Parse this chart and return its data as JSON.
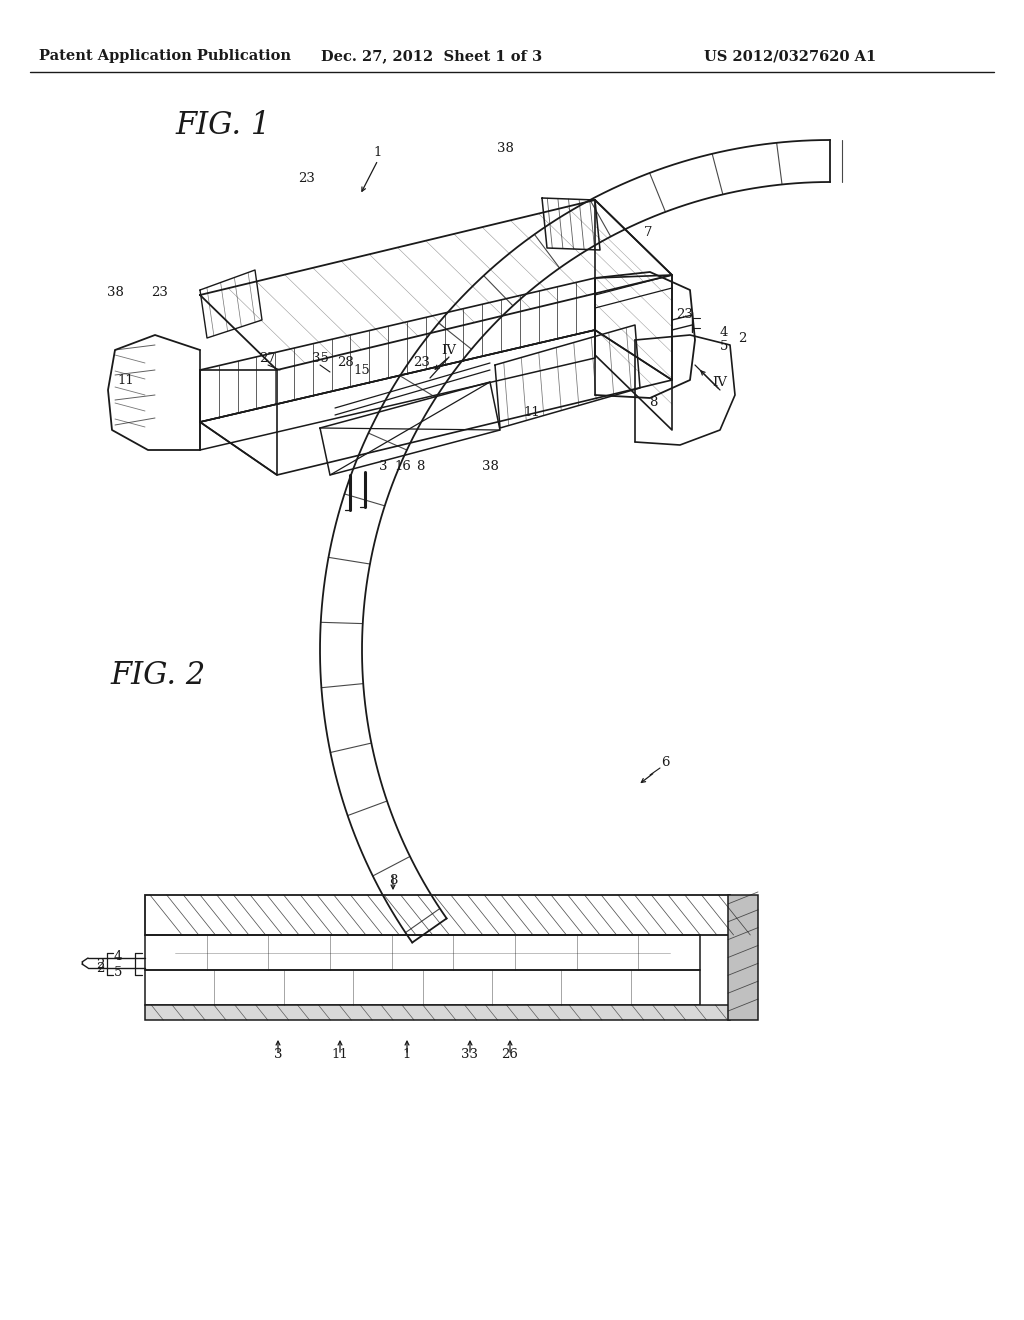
{
  "bg_color": "#ffffff",
  "lc": "#1a1a1a",
  "header_left": "Patent Application Publication",
  "header_mid": "Dec. 27, 2012  Sheet 1 of 3",
  "header_right": "US 2012/0327620 A1",
  "fig1_title": "FIG. 1",
  "fig2_title": "FIG. 2",
  "fig1_labels": [
    [
      378,
      153,
      "1"
    ],
    [
      307,
      178,
      "23"
    ],
    [
      505,
      148,
      "38"
    ],
    [
      648,
      232,
      "7"
    ],
    [
      115,
      293,
      "38"
    ],
    [
      160,
      293,
      "23"
    ],
    [
      268,
      358,
      "27"
    ],
    [
      320,
      358,
      "35"
    ],
    [
      345,
      362,
      "28"
    ],
    [
      362,
      370,
      "15"
    ],
    [
      449,
      350,
      "IV"
    ],
    [
      422,
      363,
      "23"
    ],
    [
      126,
      380,
      "11"
    ],
    [
      724,
      332,
      "4"
    ],
    [
      724,
      346,
      "5"
    ],
    [
      742,
      339,
      "2"
    ],
    [
      685,
      315,
      "23"
    ],
    [
      720,
      382,
      "IV"
    ],
    [
      653,
      402,
      "8"
    ],
    [
      532,
      412,
      "11"
    ],
    [
      383,
      466,
      "3"
    ],
    [
      403,
      466,
      "16"
    ],
    [
      420,
      466,
      "8"
    ],
    [
      490,
      466,
      "38"
    ]
  ],
  "fig2_labels": [
    [
      665,
      762,
      "6"
    ],
    [
      393,
      880,
      "8"
    ],
    [
      100,
      968,
      "2"
    ],
    [
      118,
      957,
      "4"
    ],
    [
      118,
      972,
      "5"
    ],
    [
      278,
      1055,
      "3"
    ],
    [
      340,
      1055,
      "11"
    ],
    [
      407,
      1055,
      "1"
    ],
    [
      470,
      1055,
      "33"
    ],
    [
      510,
      1055,
      "26"
    ]
  ]
}
